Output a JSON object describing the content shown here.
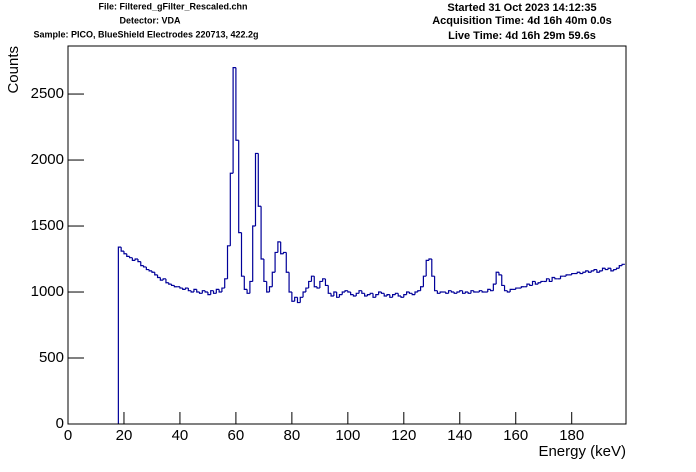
{
  "chart_data": {
    "type": "histogram",
    "annotations": [
      "File: Filtered_gFilter_Rescaled.chn",
      "Detector: VDA",
      "Sample: PICO, BlueShield Electrodes 220713, 422.2g",
      "Started 31 Oct 2023 14:12:35",
      "Acquisition Time: 4d 16h 40m 0.0s",
      "Live Time: 4d 16h 29m 59.6s"
    ],
    "x_label": "Energy (keV)",
    "y_label": "Counts",
    "color": "#000099",
    "xlim": [
      0,
      199.4
    ],
    "ylim": [
      0,
      2864
    ],
    "xticks": [
      0,
      20,
      40,
      60,
      80,
      100,
      120,
      140,
      160,
      180
    ],
    "yticks": [
      0,
      500,
      1000,
      1500,
      2000,
      2500
    ],
    "bins": [
      18,
      19,
      20,
      21,
      22,
      23,
      24,
      25,
      26,
      27,
      28,
      29,
      30,
      31,
      32,
      33,
      34,
      35,
      36,
      37,
      38,
      39,
      40,
      41,
      42,
      43,
      44,
      45,
      46,
      47,
      48,
      49,
      50,
      51,
      52,
      53,
      54,
      55,
      56,
      57,
      58,
      59,
      60,
      61,
      62,
      63,
      64,
      65,
      66,
      67,
      68,
      69,
      70,
      71,
      72,
      73,
      74,
      75,
      76,
      77,
      78,
      79,
      80,
      81,
      82,
      83,
      84,
      85,
      86,
      87,
      88,
      89,
      90,
      91,
      92,
      93,
      94,
      95,
      96,
      97,
      98,
      99,
      100,
      101,
      102,
      103,
      104,
      105,
      106,
      107,
      108,
      109,
      110,
      111,
      112,
      113,
      114,
      115,
      116,
      117,
      118,
      119,
      120,
      121,
      122,
      123,
      124,
      125,
      126,
      127,
      128,
      129,
      130,
      131,
      132,
      133,
      134,
      135,
      136,
      137,
      138,
      139,
      140,
      141,
      142,
      143,
      144,
      145,
      146,
      147,
      148,
      149,
      150,
      151,
      152,
      153,
      154,
      155,
      156,
      157,
      158,
      159,
      160,
      161,
      162,
      163,
      164,
      165,
      166,
      167,
      168,
      169,
      170,
      171,
      172,
      173,
      174,
      175,
      176,
      177,
      178,
      179,
      180,
      181,
      182,
      183,
      184,
      185,
      186,
      187,
      188,
      189,
      190,
      191,
      192,
      193,
      194,
      195,
      196,
      197,
      198,
      199
    ],
    "values": [
      1340,
      1310,
      1290,
      1270,
      1260,
      1240,
      1250,
      1230,
      1200,
      1190,
      1170,
      1160,
      1150,
      1130,
      1110,
      1090,
      1100,
      1070,
      1060,
      1050,
      1040,
      1040,
      1030,
      1020,
      1030,
      1010,
      1000,
      1020,
      1000,
      990,
      1010,
      1000,
      980,
      1010,
      990,
      1020,
      1000,
      1030,
      1100,
      1350,
      1900,
      2700,
      2150,
      1450,
      1120,
      1020,
      990,
      1080,
      1500,
      2050,
      1650,
      1250,
      1080,
      1000,
      1040,
      1150,
      1300,
      1380,
      1290,
      1300,
      1150,
      1000,
      930,
      960,
      920,
      960,
      1000,
      1030,
      1080,
      1120,
      1040,
      1030,
      1080,
      1100,
      1050,
      990,
      970,
      1000,
      960,
      980,
      1000,
      1010,
      1000,
      980,
      970,
      990,
      1010,
      990,
      970,
      980,
      990,
      960,
      980,
      1000,
      990,
      970,
      980,
      960,
      980,
      990,
      970,
      960,
      980,
      1000,
      990,
      980,
      1000,
      1010,
      1040,
      1120,
      1240,
      1250,
      1120,
      1010,
      990,
      1000,
      1000,
      990,
      1010,
      1000,
      990,
      1000,
      1010,
      990,
      1000,
      990,
      1010,
      1000,
      1000,
      1010,
      1000,
      1000,
      1020,
      1010,
      1060,
      1150,
      1130,
      1050,
      1010,
      1000,
      1020,
      1020,
      1030,
      1030,
      1040,
      1040,
      1060,
      1050,
      1080,
      1060,
      1070,
      1080,
      1080,
      1100,
      1080,
      1110,
      1100,
      1100,
      1120,
      1120,
      1130,
      1130,
      1140,
      1140,
      1150,
      1140,
      1150,
      1160,
      1150,
      1160,
      1170,
      1150,
      1160,
      1180,
      1170,
      1180,
      1160,
      1170,
      1180,
      1200,
      1210
    ]
  }
}
